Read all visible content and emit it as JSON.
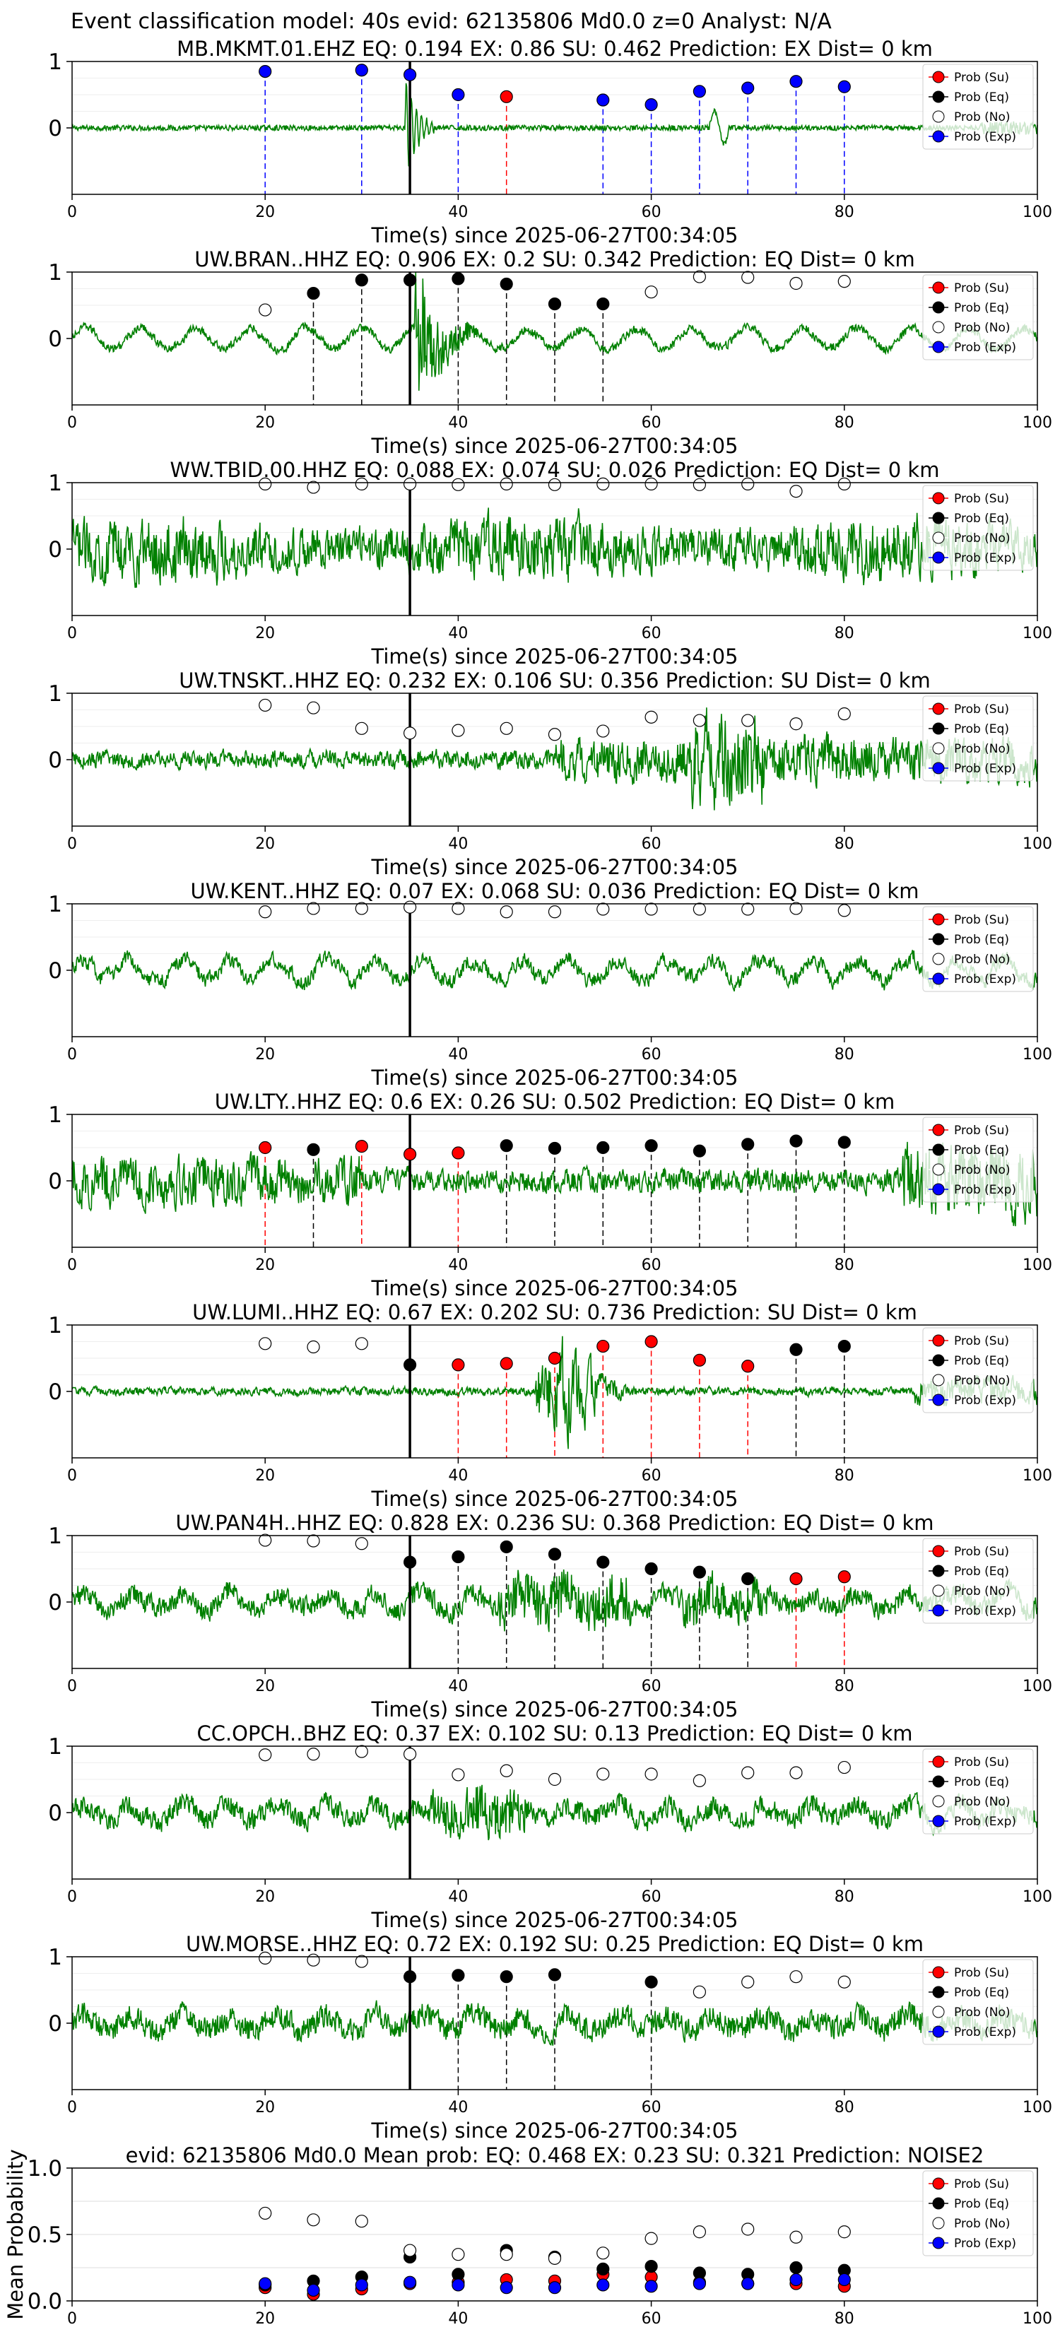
{
  "suptitle": "Event classification model: 40s evid: 62135806 Md0.0 z=0 Analyst: N/A",
  "colors": {
    "waveform": "#008000",
    "su": "#ff0000",
    "eq": "#000000",
    "no": "#ffffff",
    "exp": "#0000ff",
    "su_line": "#ff0000",
    "eq_line": "#000000",
    "exp_line": "#0000ff",
    "pick_line": "#000000"
  },
  "legend": [
    "Prob (Su)",
    "Prob (Eq)",
    "Prob (No)",
    "Prob (Exp)"
  ],
  "chart_data": [
    {
      "type": "scatter",
      "title": "MB.MKMT.01.EHZ    EQ: 0.194  EX: 0.86  SU: 0.462   Prediction: EX    Dist= 0 km",
      "xlabel": "Time(s) since 2025-06-27T00:34:05",
      "xlim": [
        0,
        100
      ],
      "ylim": [
        -1,
        1
      ],
      "xticks": [
        "0",
        "20",
        "40",
        "60",
        "80",
        "100"
      ],
      "yticks": [
        "0",
        "1"
      ],
      "pick_time": 35,
      "waveform_style": "quiet",
      "series": [
        {
          "name": "Prob (Su)",
          "x": [
            45
          ],
          "y": [
            0.47
          ]
        },
        {
          "name": "Prob (Eq)",
          "x": [],
          "y": []
        },
        {
          "name": "Prob (No)",
          "x": [],
          "y": []
        },
        {
          "name": "Prob (Exp)",
          "x": [
            20,
            30,
            35,
            40,
            55,
            60,
            65,
            70,
            75,
            80
          ],
          "y": [
            0.85,
            0.87,
            0.8,
            0.5,
            0.42,
            0.35,
            0.55,
            0.6,
            0.7,
            0.62
          ]
        }
      ]
    },
    {
      "type": "scatter",
      "title": "UW.BRAN..HHZ   EQ: 0.906  EX: 0.2  SU: 0.342   Prediction: EQ    Dist= 0 km",
      "xlabel": "Time(s) since 2025-06-27T00:34:05",
      "xlim": [
        0,
        100
      ],
      "ylim": [
        -1,
        1
      ],
      "xticks": [
        "0",
        "20",
        "40",
        "60",
        "80",
        "100"
      ],
      "yticks": [
        "0",
        "1"
      ],
      "pick_time": 35,
      "waveform_style": "burst",
      "series": [
        {
          "name": "Prob (Su)",
          "x": [],
          "y": []
        },
        {
          "name": "Prob (Eq)",
          "x": [
            25,
            30,
            35,
            40,
            45,
            50,
            55
          ],
          "y": [
            0.68,
            0.88,
            0.88,
            0.9,
            0.82,
            0.52,
            0.52
          ]
        },
        {
          "name": "Prob (No)",
          "x": [
            20,
            60,
            65,
            70,
            75,
            80
          ],
          "y": [
            0.43,
            0.7,
            0.93,
            0.92,
            0.83,
            0.86
          ]
        },
        {
          "name": "Prob (Exp)",
          "x": [],
          "y": []
        }
      ]
    },
    {
      "type": "scatter",
      "title": "WW.TBID.00.HHZ   EQ: 0.088  EX: 0.074  SU: 0.026   Prediction: EQ    Dist= 0 km",
      "xlabel": "Time(s) since 2025-06-27T00:34:05",
      "xlim": [
        0,
        100
      ],
      "ylim": [
        -1,
        1
      ],
      "xticks": [
        "0",
        "20",
        "40",
        "60",
        "80",
        "100"
      ],
      "yticks": [
        "0",
        "1"
      ],
      "pick_time": 35,
      "waveform_style": "noisy",
      "series": [
        {
          "name": "Prob (Su)",
          "x": [],
          "y": []
        },
        {
          "name": "Prob (Eq)",
          "x": [],
          "y": []
        },
        {
          "name": "Prob (No)",
          "x": [
            20,
            25,
            30,
            35,
            40,
            45,
            50,
            55,
            60,
            65,
            70,
            75,
            80
          ],
          "y": [
            0.98,
            0.93,
            0.98,
            0.98,
            0.97,
            0.98,
            0.97,
            0.98,
            0.98,
            0.97,
            0.98,
            0.87,
            0.98
          ]
        },
        {
          "name": "Prob (Exp)",
          "x": [],
          "y": []
        }
      ]
    },
    {
      "type": "scatter",
      "title": "UW.TNSKT..HHZ   EQ: 0.232  EX: 0.106  SU: 0.356   Prediction: SU    Dist= 0 km",
      "xlabel": "Time(s) since 2025-06-27T00:34:05",
      "xlim": [
        0,
        100
      ],
      "ylim": [
        -1,
        1
      ],
      "xticks": [
        "0",
        "20",
        "40",
        "60",
        "80",
        "100"
      ],
      "yticks": [
        "0",
        "1"
      ],
      "pick_time": 35,
      "waveform_style": "swell",
      "series": [
        {
          "name": "Prob (Su)",
          "x": [],
          "y": []
        },
        {
          "name": "Prob (Eq)",
          "x": [],
          "y": []
        },
        {
          "name": "Prob (No)",
          "x": [
            20,
            25,
            30,
            35,
            40,
            45,
            50,
            55,
            60,
            65,
            70,
            75,
            80
          ],
          "y": [
            0.82,
            0.78,
            0.47,
            0.4,
            0.44,
            0.47,
            0.38,
            0.43,
            0.64,
            0.59,
            0.59,
            0.54,
            0.69
          ]
        },
        {
          "name": "Prob (Exp)",
          "x": [],
          "y": []
        }
      ]
    },
    {
      "type": "scatter",
      "title": "UW.KENT..HHZ   EQ: 0.07  EX: 0.068  SU: 0.036   Prediction: EQ    Dist= 0 km",
      "xlabel": "Time(s) since 2025-06-27T00:34:05",
      "xlim": [
        0,
        100
      ],
      "ylim": [
        -1,
        1
      ],
      "xticks": [
        "0",
        "20",
        "40",
        "60",
        "80",
        "100"
      ],
      "yticks": [
        "0",
        "1"
      ],
      "pick_time": 35,
      "waveform_style": "wavy",
      "series": [
        {
          "name": "Prob (Su)",
          "x": [],
          "y": []
        },
        {
          "name": "Prob (Eq)",
          "x": [],
          "y": []
        },
        {
          "name": "Prob (No)",
          "x": [
            20,
            25,
            30,
            35,
            40,
            45,
            50,
            55,
            60,
            65,
            70,
            75,
            80
          ],
          "y": [
            0.88,
            0.93,
            0.93,
            0.95,
            0.93,
            0.88,
            0.88,
            0.92,
            0.92,
            0.92,
            0.92,
            0.93,
            0.9
          ]
        },
        {
          "name": "Prob (Exp)",
          "x": [],
          "y": []
        }
      ]
    },
    {
      "type": "scatter",
      "title": "UW.LTY..HHZ   EQ: 0.6  EX: 0.26  SU: 0.502   Prediction: EQ    Dist= 0 km",
      "xlabel": "Time(s) since 2025-06-27T00:34:05",
      "xlim": [
        0,
        100
      ],
      "ylim": [
        -1,
        1
      ],
      "xticks": [
        "0",
        "20",
        "40",
        "60",
        "80",
        "100"
      ],
      "yticks": [
        "0",
        "1"
      ],
      "pick_time": 35,
      "waveform_style": "mixed",
      "series": [
        {
          "name": "Prob (Su)",
          "x": [
            20,
            30,
            35,
            40
          ],
          "y": [
            0.5,
            0.52,
            0.4,
            0.42
          ]
        },
        {
          "name": "Prob (Eq)",
          "x": [
            25,
            45,
            50,
            55,
            60,
            65,
            70,
            75,
            80
          ],
          "y": [
            0.47,
            0.53,
            0.49,
            0.5,
            0.53,
            0.45,
            0.55,
            0.6,
            0.58
          ]
        },
        {
          "name": "Prob (No)",
          "x": [],
          "y": []
        },
        {
          "name": "Prob (Exp)",
          "x": [],
          "y": []
        }
      ]
    },
    {
      "type": "scatter",
      "title": "UW.LUMI..HHZ   EQ: 0.67  EX: 0.202  SU: 0.736   Prediction: SU    Dist= 0 km",
      "xlabel": "Time(s) since 2025-06-27T00:34:05",
      "xlim": [
        0,
        100
      ],
      "ylim": [
        -1,
        1
      ],
      "xticks": [
        "0",
        "20",
        "40",
        "60",
        "80",
        "100"
      ],
      "yticks": [
        "0",
        "1"
      ],
      "pick_time": 35,
      "waveform_style": "lumi",
      "series": [
        {
          "name": "Prob (Su)",
          "x": [
            40,
            45,
            50,
            55,
            60,
            65,
            70
          ],
          "y": [
            0.4,
            0.42,
            0.5,
            0.68,
            0.75,
            0.47,
            0.38
          ]
        },
        {
          "name": "Prob (Eq)",
          "x": [
            35,
            75,
            80
          ],
          "y": [
            0.4,
            0.63,
            0.68
          ]
        },
        {
          "name": "Prob (No)",
          "x": [
            20,
            25,
            30
          ],
          "y": [
            0.72,
            0.67,
            0.72
          ]
        },
        {
          "name": "Prob (Exp)",
          "x": [],
          "y": []
        }
      ]
    },
    {
      "type": "scatter",
      "title": "UW.PAN4H..HHZ   EQ: 0.828  EX: 0.236  SU: 0.368   Prediction: EQ    Dist= 0 km",
      "xlabel": "Time(s) since 2025-06-27T00:34:05",
      "xlim": [
        0,
        100
      ],
      "ylim": [
        -1,
        1
      ],
      "xticks": [
        "0",
        "20",
        "40",
        "60",
        "80",
        "100"
      ],
      "yticks": [
        "0",
        "1"
      ],
      "pick_time": 35,
      "waveform_style": "wavy_big",
      "series": [
        {
          "name": "Prob (Su)",
          "x": [
            75,
            80
          ],
          "y": [
            0.35,
            0.38
          ]
        },
        {
          "name": "Prob (Eq)",
          "x": [
            35,
            40,
            45,
            50,
            55,
            60,
            65,
            70
          ],
          "y": [
            0.6,
            0.68,
            0.83,
            0.72,
            0.6,
            0.5,
            0.45,
            0.35
          ]
        },
        {
          "name": "Prob (No)",
          "x": [
            20,
            25,
            30
          ],
          "y": [
            0.93,
            0.92,
            0.88
          ]
        },
        {
          "name": "Prob (Exp)",
          "x": [],
          "y": []
        }
      ]
    },
    {
      "type": "scatter",
      "title": "CC.OPCH..BHZ   EQ: 0.37  EX: 0.102  SU: 0.13   Prediction: EQ    Dist= 0 km",
      "xlabel": "Time(s) since 2025-06-27T00:34:05",
      "xlim": [
        0,
        100
      ],
      "ylim": [
        -1,
        1
      ],
      "xticks": [
        "0",
        "20",
        "40",
        "60",
        "80",
        "100"
      ],
      "yticks": [
        "0",
        "1"
      ],
      "pick_time": 35,
      "waveform_style": "opch",
      "series": [
        {
          "name": "Prob (Su)",
          "x": [],
          "y": []
        },
        {
          "name": "Prob (Eq)",
          "x": [],
          "y": []
        },
        {
          "name": "Prob (No)",
          "x": [
            20,
            25,
            30,
            35,
            40,
            45,
            50,
            55,
            60,
            65,
            70,
            75,
            80
          ],
          "y": [
            0.87,
            0.88,
            0.92,
            0.88,
            0.57,
            0.63,
            0.5,
            0.58,
            0.58,
            0.48,
            0.6,
            0.6,
            0.68
          ]
        },
        {
          "name": "Prob (Exp)",
          "x": [],
          "y": []
        }
      ]
    },
    {
      "type": "scatter",
      "title": "UW.MORSE..HHZ   EQ: 0.72  EX: 0.192  SU: 0.25   Prediction: EQ    Dist= 0 km",
      "xlabel": "Time(s) since 2025-06-27T00:34:05",
      "xlim": [
        0,
        100
      ],
      "ylim": [
        -1,
        1
      ],
      "xticks": [
        "0",
        "20",
        "40",
        "60",
        "80",
        "100"
      ],
      "yticks": [
        "0",
        "1"
      ],
      "pick_time": 35,
      "waveform_style": "morse",
      "series": [
        {
          "name": "Prob (Su)",
          "x": [],
          "y": []
        },
        {
          "name": "Prob (Eq)",
          "x": [
            35,
            40,
            45,
            50,
            60
          ],
          "y": [
            0.7,
            0.72,
            0.7,
            0.73,
            0.62
          ]
        },
        {
          "name": "Prob (No)",
          "x": [
            20,
            25,
            30,
            65,
            70,
            75,
            80
          ],
          "y": [
            0.98,
            0.95,
            0.93,
            0.47,
            0.62,
            0.7,
            0.62
          ]
        },
        {
          "name": "Prob (Exp)",
          "x": [],
          "y": []
        }
      ]
    },
    {
      "type": "scatter",
      "title": "evid: 62135806  Md0.0   Mean prob:   EQ: 0.468  EX: 0.23  SU: 0.321   Prediction: NOISE2",
      "xlabel": "",
      "ylabel": "Mean Probability",
      "xlim": [
        0,
        100
      ],
      "ylim": [
        0,
        1
      ],
      "xticks": [
        "0",
        "20",
        "40",
        "60",
        "80",
        "100"
      ],
      "yticks": [
        "0.0",
        "0.5",
        "1.0"
      ],
      "grid": true,
      "series": [
        {
          "name": "Prob (Su)",
          "x": [
            20,
            25,
            30,
            35,
            40,
            45,
            50,
            55,
            60,
            65,
            70,
            75,
            80
          ],
          "y": [
            0.1,
            0.05,
            0.09,
            0.13,
            0.14,
            0.16,
            0.15,
            0.2,
            0.18,
            0.14,
            0.13,
            0.13,
            0.11
          ]
        },
        {
          "name": "Prob (Eq)",
          "x": [
            20,
            25,
            30,
            35,
            40,
            45,
            50,
            55,
            60,
            65,
            70,
            75,
            80
          ],
          "y": [
            0.12,
            0.15,
            0.18,
            0.33,
            0.2,
            0.38,
            0.33,
            0.24,
            0.26,
            0.21,
            0.2,
            0.25,
            0.23
          ]
        },
        {
          "name": "Prob (No)",
          "x": [
            20,
            25,
            30,
            35,
            40,
            45,
            50,
            55,
            60,
            65,
            70,
            75,
            80
          ],
          "y": [
            0.66,
            0.61,
            0.6,
            0.38,
            0.35,
            0.35,
            0.32,
            0.36,
            0.47,
            0.52,
            0.54,
            0.48,
            0.52
          ]
        },
        {
          "name": "Prob (Exp)",
          "x": [
            20,
            25,
            30,
            35,
            40,
            45,
            50,
            55,
            60,
            65,
            70,
            75,
            80
          ],
          "y": [
            0.13,
            0.08,
            0.12,
            0.14,
            0.12,
            0.1,
            0.1,
            0.12,
            0.11,
            0.13,
            0.13,
            0.16,
            0.16
          ]
        }
      ]
    }
  ]
}
